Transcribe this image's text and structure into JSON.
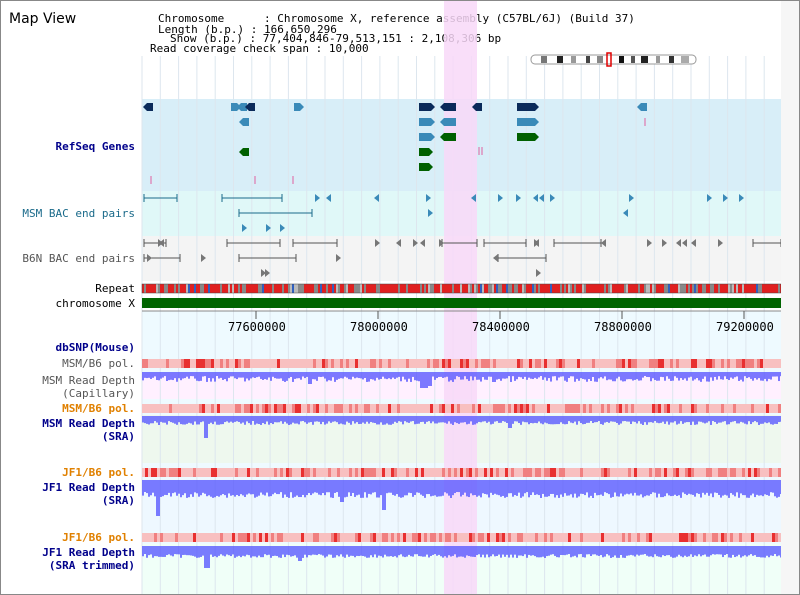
{
  "title": "Map View",
  "info": {
    "chromosome_label": "Chromosome",
    "chromosome_value": "Chromosome X, reference assembly (C57BL/6J) (Build 37)",
    "length_label": "Length (b.p.)",
    "length_value": "166,650,296",
    "show_label": "Show (b.p.)",
    "show_value": "77,404,846-79,513,151 : 2,108,306 bp",
    "coverage_label": "Read coverage check span",
    "coverage_value": "10,000"
  },
  "tracks": {
    "refseq": "RefSeq Genes",
    "msm_bac": "MSM BAC end pairs",
    "b6n_bac": "B6N BAC end pairs",
    "repeat": "Repeat",
    "chromosome": "chromosome X",
    "dbsnp": "dbSNP(Mouse)",
    "msm_b6_pol_1": "MSM/B6 pol.",
    "msm_read_depth_cap_1": "MSM Read Depth",
    "msm_read_depth_cap_2": "(Capillary)",
    "msm_b6_pol_2": "MSM/B6 pol.",
    "msm_read_depth_sra_1": "MSM Read Depth",
    "msm_read_depth_sra_2": "(SRA)",
    "jf1_b6_pol_1": "JF1/B6 pol.",
    "jf1_read_depth_sra_1": "JF1 Read Depth",
    "jf1_read_depth_sra_2": "(SRA)",
    "jf1_b6_pol_2": "JF1/B6 pol.",
    "jf1_read_depth_trim_1": "JF1 Read Depth",
    "jf1_read_depth_trim_2": "(SRA trimmed)"
  },
  "axis": {
    "ticks": [
      "77600000",
      "78000000",
      "78400000",
      "78800000",
      "79200000"
    ]
  },
  "colors": {
    "highlight": "#f8d8f8",
    "refseq_bg": "#d8eef8",
    "bac_bg": "#e0f8f8",
    "gene_dark": "#0a2a5a",
    "gene_mid": "#3a8ab8",
    "gene_green": "#006000",
    "chromosome": "#006400",
    "depth": "#5050ff"
  }
}
